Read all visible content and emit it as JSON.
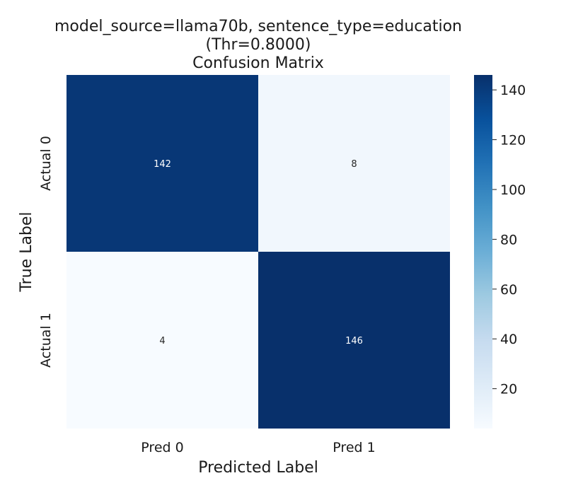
{
  "chart_data": {
    "type": "heatmap",
    "title_lines": [
      "model_source=llama70b, sentence_type=education",
      "(Thr=0.8000)",
      "Confusion Matrix"
    ],
    "xlabel": "Predicted Label",
    "ylabel": "True Label",
    "x_categories": [
      "Pred 0",
      "Pred 1"
    ],
    "y_categories": [
      "Actual 0",
      "Actual 1"
    ],
    "values": [
      [
        142,
        8
      ],
      [
        4,
        146
      ]
    ],
    "colormap": "Blues",
    "colorbar": {
      "range": [
        4,
        146
      ],
      "ticks": [
        20,
        40,
        60,
        80,
        100,
        120,
        140
      ]
    },
    "colors": {
      "low": "#f7fbff",
      "high": "#08306b",
      "text_dark_bg": "#ffffff",
      "text_light_bg": "#262626"
    }
  }
}
